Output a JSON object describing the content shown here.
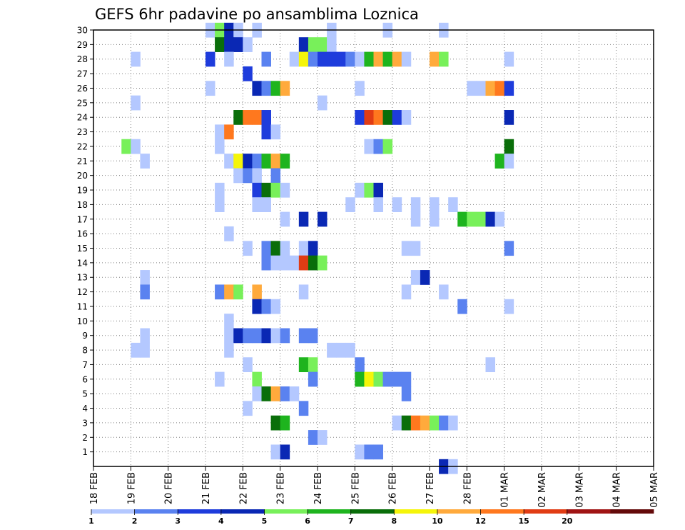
{
  "chart_data": {
    "type": "heatmap",
    "title": "GEFS 6hr padavine po ansamblima Loznica",
    "xlabel": "",
    "ylabel": "",
    "x_tick_labels": [
      "18 FEB",
      "19 FEB",
      "20 FEB",
      "21 FEB",
      "22 FEB",
      "23 FEB",
      "24 FEB",
      "25 FEB",
      "26 FEB",
      "27 FEB",
      "28 FEB",
      "01 MAR",
      "02 MAR",
      "03 MAR",
      "04 MAR",
      "05 MAR"
    ],
    "x_range_days": [
      0,
      15
    ],
    "x_step_hours": 6,
    "y_tick_labels": [
      "1",
      "2",
      "3",
      "4",
      "5",
      "6",
      "7",
      "8",
      "9",
      "10",
      "11",
      "12",
      "13",
      "14",
      "15",
      "16",
      "17",
      "18",
      "19",
      "20",
      "21",
      "22",
      "23",
      "24",
      "25",
      "26",
      "27",
      "28",
      "29",
      "30"
    ],
    "ylim": [
      0,
      30
    ],
    "grid": "dotted",
    "legend": {
      "placement": "bottom",
      "labels": [
        "1",
        "2",
        "3",
        "4",
        "5",
        "6",
        "7",
        "8",
        "10",
        "12",
        "15",
        "20"
      ],
      "colors": [
        "#b4c8ff",
        "#5a82f0",
        "#1e3cdc",
        "#0a28b4",
        "#78f05a",
        "#1eb41e",
        "#0a6e0a",
        "#f5f50a",
        "#ffaa3c",
        "#ff781e",
        "#e13c14",
        "#a01414",
        "#640a0a"
      ]
    },
    "cells": [
      {
        "e": 30,
        "t": [
          [
            12,
            0
          ],
          [
            13,
            4
          ],
          [
            14,
            3
          ],
          [
            15,
            0
          ],
          [
            17,
            0
          ],
          [
            25,
            0
          ],
          [
            31,
            0
          ],
          [
            37,
            0
          ]
        ]
      },
      {
        "e": 29,
        "t": [
          [
            13,
            6
          ],
          [
            14,
            3
          ],
          [
            15,
            3
          ],
          [
            16,
            0
          ],
          [
            22,
            3
          ],
          [
            23,
            4
          ],
          [
            24,
            4
          ],
          [
            25,
            0
          ]
        ]
      },
      {
        "e": 28,
        "t": [
          [
            4,
            0
          ],
          [
            12,
            2
          ],
          [
            14,
            0
          ],
          [
            18,
            1
          ],
          [
            21,
            0
          ],
          [
            22,
            7
          ],
          [
            23,
            1
          ],
          [
            24,
            2
          ],
          [
            25,
            2
          ],
          [
            26,
            2
          ],
          [
            27,
            1
          ],
          [
            28,
            0
          ],
          [
            29,
            5
          ],
          [
            30,
            8
          ],
          [
            31,
            5
          ],
          [
            32,
            8
          ],
          [
            33,
            0
          ],
          [
            36,
            8
          ],
          [
            37,
            4
          ],
          [
            44,
            0
          ]
        ]
      },
      {
        "e": 27,
        "t": [
          [
            16,
            2
          ]
        ]
      },
      {
        "e": 26,
        "t": [
          [
            12,
            0
          ],
          [
            17,
            3
          ],
          [
            18,
            1
          ],
          [
            19,
            5
          ],
          [
            20,
            8
          ],
          [
            28,
            0
          ],
          [
            40,
            0
          ],
          [
            41,
            0
          ],
          [
            42,
            8
          ],
          [
            43,
            9
          ],
          [
            44,
            2
          ]
        ]
      },
      {
        "e": 25,
        "t": [
          [
            4,
            0
          ],
          [
            24,
            0
          ]
        ]
      },
      {
        "e": 24,
        "t": [
          [
            15,
            6
          ],
          [
            16,
            9
          ],
          [
            17,
            9
          ],
          [
            18,
            2
          ],
          [
            28,
            2
          ],
          [
            29,
            10
          ],
          [
            30,
            9
          ],
          [
            31,
            6
          ],
          [
            32,
            2
          ],
          [
            33,
            0
          ],
          [
            44,
            3
          ]
        ]
      },
      {
        "e": 23,
        "t": [
          [
            13,
            0
          ],
          [
            14,
            9
          ],
          [
            18,
            2
          ],
          [
            19,
            0
          ]
        ]
      },
      {
        "e": 22,
        "t": [
          [
            3,
            4
          ],
          [
            4,
            0
          ],
          [
            13,
            0
          ],
          [
            29,
            0
          ],
          [
            30,
            1
          ],
          [
            31,
            4
          ],
          [
            44,
            6
          ]
        ]
      },
      {
        "e": 21,
        "t": [
          [
            5,
            0
          ],
          [
            14,
            0
          ],
          [
            15,
            7
          ],
          [
            16,
            3
          ],
          [
            17,
            1
          ],
          [
            18,
            5
          ],
          [
            19,
            8
          ],
          [
            20,
            5
          ],
          [
            43,
            5
          ],
          [
            44,
            0
          ]
        ]
      },
      {
        "e": 20,
        "t": [
          [
            15,
            0
          ],
          [
            16,
            1
          ],
          [
            17,
            0
          ],
          [
            19,
            1
          ]
        ]
      },
      {
        "e": 19,
        "t": [
          [
            13,
            0
          ],
          [
            17,
            2
          ],
          [
            18,
            6
          ],
          [
            19,
            4
          ],
          [
            20,
            0
          ],
          [
            28,
            0
          ],
          [
            29,
            4
          ],
          [
            30,
            3
          ]
        ]
      },
      {
        "e": 18,
        "t": [
          [
            13,
            0
          ],
          [
            17,
            0
          ],
          [
            18,
            0
          ],
          [
            27,
            0
          ],
          [
            30,
            0
          ],
          [
            32,
            0
          ],
          [
            34,
            0
          ],
          [
            36,
            0
          ],
          [
            38,
            0
          ]
        ]
      },
      {
        "e": 17,
        "t": [
          [
            20,
            0
          ],
          [
            22,
            3
          ],
          [
            24,
            3
          ],
          [
            34,
            0
          ],
          [
            36,
            0
          ],
          [
            39,
            5
          ],
          [
            40,
            4
          ],
          [
            41,
            4
          ],
          [
            42,
            3
          ],
          [
            43,
            0
          ]
        ]
      },
      {
        "e": 16,
        "t": [
          [
            14,
            0
          ]
        ]
      },
      {
        "e": 15,
        "t": [
          [
            16,
            0
          ],
          [
            18,
            1
          ],
          [
            19,
            6
          ],
          [
            20,
            0
          ],
          [
            22,
            0
          ],
          [
            23,
            3
          ],
          [
            33,
            0
          ],
          [
            34,
            0
          ],
          [
            44,
            1
          ]
        ]
      },
      {
        "e": 14,
        "t": [
          [
            18,
            1
          ],
          [
            19,
            0
          ],
          [
            20,
            0
          ],
          [
            21,
            0
          ],
          [
            22,
            10
          ],
          [
            23,
            6
          ],
          [
            24,
            4
          ]
        ]
      },
      {
        "e": 13,
        "t": [
          [
            5,
            0
          ],
          [
            34,
            0
          ],
          [
            35,
            3
          ]
        ]
      },
      {
        "e": 12,
        "t": [
          [
            5,
            1
          ],
          [
            13,
            1
          ],
          [
            14,
            8
          ],
          [
            15,
            4
          ],
          [
            17,
            8
          ],
          [
            22,
            0
          ],
          [
            33,
            0
          ],
          [
            37,
            0
          ]
        ]
      },
      {
        "e": 11,
        "t": [
          [
            17,
            3
          ],
          [
            18,
            1
          ],
          [
            19,
            0
          ],
          [
            39,
            1
          ],
          [
            44,
            0
          ]
        ]
      },
      {
        "e": 10,
        "t": [
          [
            14,
            0
          ]
        ]
      },
      {
        "e": 9,
        "t": [
          [
            5,
            0
          ],
          [
            14,
            0
          ],
          [
            15,
            3
          ],
          [
            16,
            1
          ],
          [
            17,
            1
          ],
          [
            18,
            3
          ],
          [
            19,
            0
          ],
          [
            20,
            1
          ],
          [
            22,
            1
          ],
          [
            23,
            1
          ]
        ]
      },
      {
        "e": 8,
        "t": [
          [
            4,
            0
          ],
          [
            5,
            0
          ],
          [
            14,
            0
          ],
          [
            25,
            0
          ],
          [
            26,
            0
          ],
          [
            27,
            0
          ]
        ]
      },
      {
        "e": 7,
        "t": [
          [
            16,
            0
          ],
          [
            22,
            5
          ],
          [
            23,
            4
          ],
          [
            28,
            1
          ],
          [
            42,
            0
          ]
        ]
      },
      {
        "e": 6,
        "t": [
          [
            13,
            0
          ],
          [
            17,
            4
          ],
          [
            23,
            1
          ],
          [
            28,
            5
          ],
          [
            29,
            7
          ],
          [
            30,
            4
          ],
          [
            31,
            1
          ],
          [
            32,
            1
          ],
          [
            33,
            1
          ]
        ]
      },
      {
        "e": 5,
        "t": [
          [
            17,
            0
          ],
          [
            18,
            6
          ],
          [
            19,
            8
          ],
          [
            20,
            1
          ],
          [
            21,
            0
          ],
          [
            33,
            1
          ]
        ]
      },
      {
        "e": 4,
        "t": [
          [
            16,
            0
          ],
          [
            22,
            1
          ]
        ]
      },
      {
        "e": 3,
        "t": [
          [
            19,
            6
          ],
          [
            20,
            5
          ],
          [
            32,
            0
          ],
          [
            33,
            6
          ],
          [
            34,
            9
          ],
          [
            35,
            8
          ],
          [
            36,
            4
          ],
          [
            37,
            1
          ],
          [
            38,
            0
          ]
        ]
      },
      {
        "e": 2,
        "t": [
          [
            23,
            1
          ],
          [
            24,
            0
          ]
        ]
      },
      {
        "e": 1,
        "t": [
          [
            19,
            0
          ],
          [
            20,
            3
          ],
          [
            28,
            0
          ],
          [
            29,
            1
          ],
          [
            30,
            1
          ]
        ]
      },
      {
        "e": 0,
        "t": [
          [
            37,
            3
          ],
          [
            38,
            0
          ]
        ]
      }
    ]
  }
}
